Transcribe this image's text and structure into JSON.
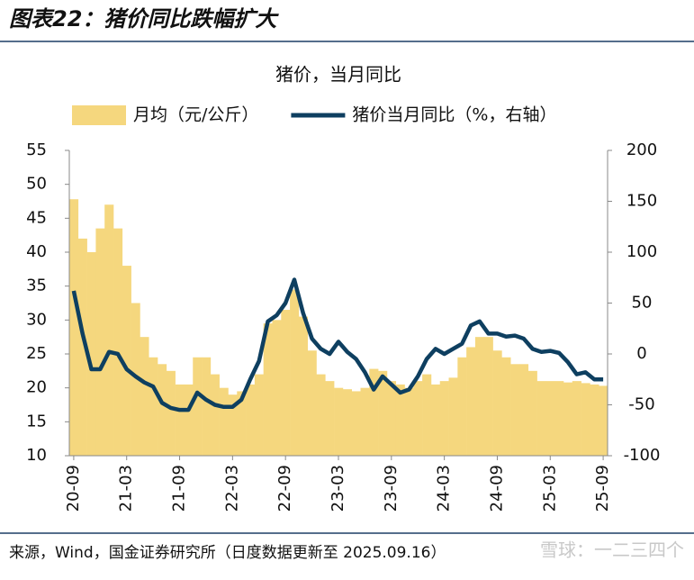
{
  "header": {
    "title": "图表22：猪价同比跌幅扩大"
  },
  "chart_data": {
    "type": "bar_line",
    "title": "猪价，当月同比",
    "categories": [
      "20-09",
      null,
      null,
      null,
      null,
      null,
      "21-03",
      null,
      null,
      null,
      null,
      null,
      "21-09",
      null,
      null,
      null,
      null,
      null,
      "22-03",
      null,
      null,
      null,
      null,
      null,
      "22-09",
      null,
      null,
      null,
      null,
      null,
      "23-03",
      null,
      null,
      null,
      null,
      null,
      "23-09",
      null,
      null,
      null,
      null,
      null,
      "24-03",
      null,
      null,
      null,
      null,
      null,
      "24-09",
      null,
      null,
      null,
      null,
      null,
      "25-03",
      null,
      null,
      null,
      null,
      null,
      "25-09"
    ],
    "series": [
      {
        "name": "月均（元/公斤）",
        "type": "bar",
        "color": "#f5d77e",
        "axis": "y",
        "values": [
          47.8,
          42,
          40,
          43.5,
          47,
          43.5,
          38,
          32.5,
          27.5,
          24.5,
          23.5,
          22.5,
          20.5,
          20.5,
          24.5,
          24.5,
          22,
          20,
          19,
          19.5,
          20.5,
          22,
          29.5,
          30,
          31.5,
          34.5,
          30.5,
          25.5,
          22,
          21,
          20,
          19.8,
          19.5,
          20,
          22.8,
          22.5,
          21,
          20.5,
          20,
          21,
          22,
          20.5,
          21,
          21.5,
          24.5,
          26,
          27.5,
          27.5,
          25.5,
          24.5,
          23.5,
          23.5,
          22.5,
          21,
          21,
          21,
          20.8,
          21,
          20.7,
          20.5,
          20.3
        ]
      },
      {
        "name": "猪价当月同比（%，右轴）",
        "type": "line",
        "color": "#0e3f60",
        "axis": "y2",
        "values": [
          62,
          20,
          -15,
          -15,
          2,
          0,
          -15,
          -22,
          -28,
          -32,
          -48,
          -53,
          -55,
          -55,
          -38,
          -45,
          -50,
          -52,
          -52,
          -45,
          -25,
          -7,
          32,
          38,
          50,
          73,
          40,
          15,
          5,
          0,
          12,
          2,
          -5,
          -18,
          -35,
          -22,
          -30,
          -38,
          -35,
          -22,
          -5,
          5,
          0,
          5,
          10,
          28,
          32,
          20,
          20,
          17,
          18,
          15,
          5,
          2,
          3,
          1,
          -8,
          -20,
          -18,
          -25,
          -25
        ]
      }
    ],
    "ylim": [
      10,
      55
    ],
    "yticks": [
      10,
      15,
      20,
      25,
      30,
      35,
      40,
      45,
      50,
      55
    ],
    "y2lim": [
      -100,
      200
    ],
    "y2ticks": [
      -100,
      -50,
      0,
      50,
      100,
      150,
      200
    ],
    "grid": false,
    "legend": "top"
  },
  "footer": {
    "source": "来源，Wind，国金证券研究所（日度数据更新至 2025.09.16）",
    "watermark": "雪球：一二三四个"
  }
}
